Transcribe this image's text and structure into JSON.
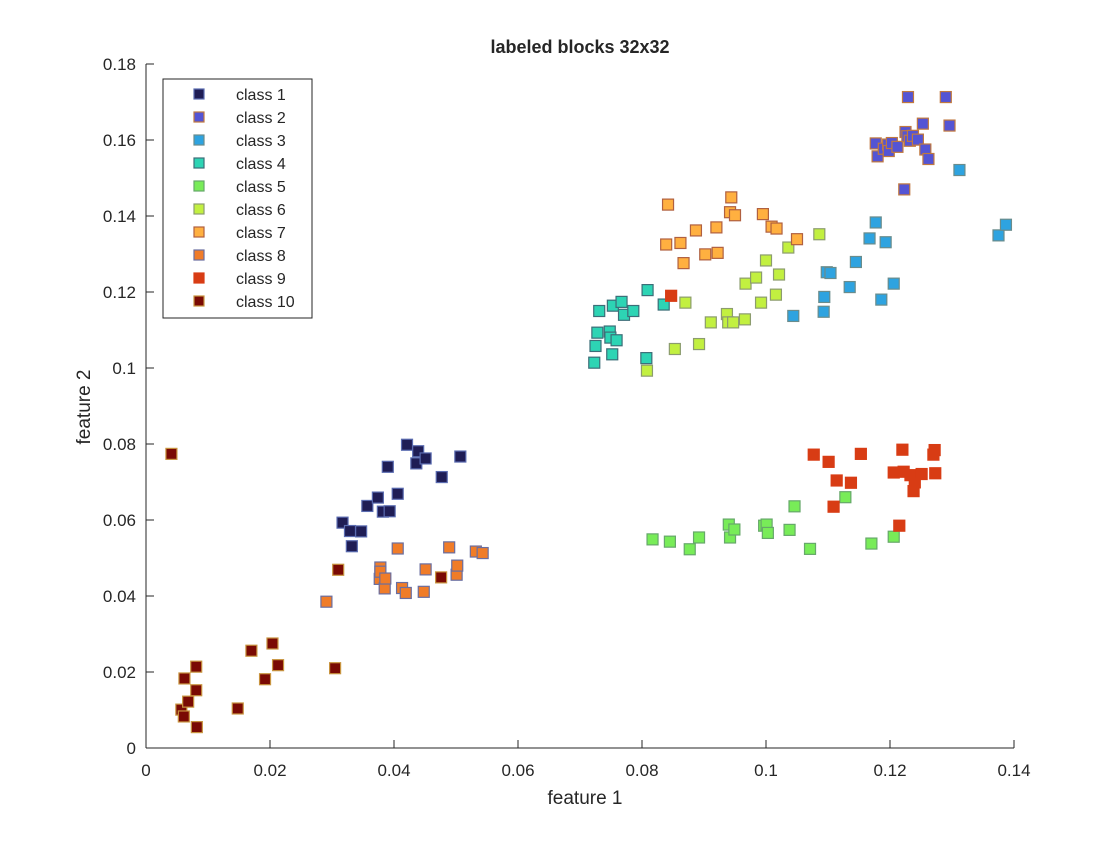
{
  "chart_data": {
    "type": "scatter",
    "title": "labeled blocks 32x32",
    "xlabel": "feature 1",
    "ylabel": "feature 2",
    "xlim": [
      0,
      0.14
    ],
    "ylim": [
      0,
      0.18
    ],
    "xticks": [
      "0",
      "0.02",
      "0.04",
      "0.06",
      "0.08",
      "0.1",
      "0.12",
      "0.14"
    ],
    "yticks": [
      "0",
      "0.02",
      "0.04",
      "0.06",
      "0.08",
      "0.1",
      "0.12",
      "0.14",
      "0.16",
      "0.18"
    ],
    "grid": false,
    "legend_position": "top-left",
    "series": [
      {
        "name": "class 1",
        "color": "#1f1d55",
        "edge": "#5a6bb0",
        "points": [
          [
            0.0317,
            0.0593
          ],
          [
            0.0329,
            0.0571
          ],
          [
            0.0332,
            0.0531
          ],
          [
            0.0347,
            0.057
          ],
          [
            0.0357,
            0.0637
          ],
          [
            0.0374,
            0.0659
          ],
          [
            0.0382,
            0.0622
          ],
          [
            0.039,
            0.074
          ],
          [
            0.0393,
            0.0623
          ],
          [
            0.0406,
            0.0669
          ],
          [
            0.0421,
            0.0798
          ],
          [
            0.0436,
            0.0749
          ],
          [
            0.0439,
            0.0781
          ],
          [
            0.0451,
            0.0762
          ],
          [
            0.0477,
            0.0713
          ],
          [
            0.0507,
            0.0767
          ]
        ]
      },
      {
        "name": "class 2",
        "color": "#5454d4",
        "edge": "#c07840",
        "points": [
          [
            0.1177,
            0.1591
          ],
          [
            0.118,
            0.1557
          ],
          [
            0.119,
            0.1577
          ],
          [
            0.1197,
            0.1588
          ],
          [
            0.1198,
            0.1571
          ],
          [
            0.1203,
            0.1592
          ],
          [
            0.1212,
            0.1582
          ],
          [
            0.1223,
            0.147
          ],
          [
            0.1225,
            0.1621
          ],
          [
            0.1228,
            0.161
          ],
          [
            0.1229,
            0.1713
          ],
          [
            0.1232,
            0.1598
          ],
          [
            0.1237,
            0.1611
          ],
          [
            0.1245,
            0.1601
          ],
          [
            0.1253,
            0.1643
          ],
          [
            0.1257,
            0.1575
          ],
          [
            0.1262,
            0.155
          ],
          [
            0.129,
            0.1713
          ],
          [
            0.1296,
            0.1638
          ]
        ]
      },
      {
        "name": "class 3",
        "color": "#2ea3e0",
        "edge": "#6a8c8c",
        "points": [
          [
            0.1044,
            0.1137
          ],
          [
            0.1093,
            0.1148
          ],
          [
            0.1094,
            0.1187
          ],
          [
            0.1098,
            0.1252
          ],
          [
            0.1104,
            0.125
          ],
          [
            0.1135,
            0.1213
          ],
          [
            0.1145,
            0.1279
          ],
          [
            0.1167,
            0.1341
          ],
          [
            0.1177,
            0.1383
          ],
          [
            0.1186,
            0.118
          ],
          [
            0.1193,
            0.1331
          ],
          [
            0.1206,
            0.1222
          ],
          [
            0.1312,
            0.1521
          ],
          [
            0.1375,
            0.1349
          ],
          [
            0.1387,
            0.1377
          ]
        ]
      },
      {
        "name": "class 4",
        "color": "#2dd4b4",
        "edge": "#3c6e78",
        "points": [
          [
            0.0723,
            0.1014
          ],
          [
            0.0725,
            0.1058
          ],
          [
            0.0728,
            0.1093
          ],
          [
            0.0731,
            0.115
          ],
          [
            0.0748,
            0.1096
          ],
          [
            0.0749,
            0.108
          ],
          [
            0.0752,
            0.1036
          ],
          [
            0.0753,
            0.1164
          ],
          [
            0.0759,
            0.1073
          ],
          [
            0.0767,
            0.1174
          ],
          [
            0.0771,
            0.114
          ],
          [
            0.0786,
            0.115
          ],
          [
            0.0807,
            0.1026
          ],
          [
            0.0809,
            0.1205
          ],
          [
            0.0835,
            0.1167
          ]
        ]
      },
      {
        "name": "class 5",
        "color": "#78ec58",
        "edge": "#66a86a",
        "points": [
          [
            0.0817,
            0.0549
          ],
          [
            0.0845,
            0.0543
          ],
          [
            0.0877,
            0.0523
          ],
          [
            0.0892,
            0.0554
          ],
          [
            0.094,
            0.0588
          ],
          [
            0.0942,
            0.0554
          ],
          [
            0.0949,
            0.0575
          ],
          [
            0.0997,
            0.0585
          ],
          [
            0.1001,
            0.0588
          ],
          [
            0.1003,
            0.0566
          ],
          [
            0.1038,
            0.0574
          ],
          [
            0.1046,
            0.0636
          ],
          [
            0.1071,
            0.0524
          ],
          [
            0.1128,
            0.066
          ],
          [
            0.117,
            0.0538
          ],
          [
            0.1206,
            0.0556
          ]
        ]
      },
      {
        "name": "class 6",
        "color": "#c2f040",
        "edge": "#8c9c6e",
        "points": [
          [
            0.0808,
            0.0993
          ],
          [
            0.0853,
            0.105
          ],
          [
            0.087,
            0.1172
          ],
          [
            0.0892,
            0.1063
          ],
          [
            0.0911,
            0.112
          ],
          [
            0.0937,
            0.1142
          ],
          [
            0.0939,
            0.112
          ],
          [
            0.0947,
            0.112
          ],
          [
            0.0966,
            0.1128
          ],
          [
            0.0967,
            0.1222
          ],
          [
            0.0984,
            0.1238
          ],
          [
            0.0992,
            0.1172
          ],
          [
            0.1,
            0.1283
          ],
          [
            0.1016,
            0.1193
          ],
          [
            0.1021,
            0.1246
          ],
          [
            0.1036,
            0.1317
          ],
          [
            0.1086,
            0.1352
          ]
        ]
      },
      {
        "name": "class 7",
        "color": "#ffb040",
        "edge": "#b06040",
        "points": [
          [
            0.0839,
            0.1325
          ],
          [
            0.0842,
            0.143
          ],
          [
            0.0862,
            0.1329
          ],
          [
            0.0867,
            0.1276
          ],
          [
            0.0887,
            0.1362
          ],
          [
            0.0902,
            0.1299
          ],
          [
            0.092,
            0.137
          ],
          [
            0.0922,
            0.1303
          ],
          [
            0.0942,
            0.141
          ],
          [
            0.0944,
            0.1449
          ],
          [
            0.095,
            0.1402
          ],
          [
            0.0995,
            0.1405
          ],
          [
            0.1009,
            0.1372
          ],
          [
            0.1017,
            0.1367
          ],
          [
            0.105,
            0.1339
          ]
        ]
      },
      {
        "name": "class 8",
        "color": "#f07c28",
        "edge": "#6a6ea0",
        "points": [
          [
            0.0291,
            0.0385
          ],
          [
            0.0377,
            0.0445
          ],
          [
            0.0378,
            0.0475
          ],
          [
            0.0378,
            0.0464
          ],
          [
            0.0385,
            0.042
          ],
          [
            0.0386,
            0.0446
          ],
          [
            0.0406,
            0.0525
          ],
          [
            0.0413,
            0.0421
          ],
          [
            0.0419,
            0.0408
          ],
          [
            0.0448,
            0.0411
          ],
          [
            0.0451,
            0.047
          ],
          [
            0.0489,
            0.0528
          ],
          [
            0.0501,
            0.0456
          ],
          [
            0.0502,
            0.048
          ],
          [
            0.0532,
            0.0517
          ],
          [
            0.0543,
            0.0513
          ]
        ]
      },
      {
        "name": "class 9",
        "color": "#d83c14",
        "edge": "#d83c14",
        "points": [
          [
            0.0847,
            0.119
          ],
          [
            0.1077,
            0.0772
          ],
          [
            0.1101,
            0.0753
          ],
          [
            0.1109,
            0.0635
          ],
          [
            0.1114,
            0.0704
          ],
          [
            0.1137,
            0.0698
          ],
          [
            0.1153,
            0.0774
          ],
          [
            0.1206,
            0.0725
          ],
          [
            0.1215,
            0.0585
          ],
          [
            0.122,
            0.0785
          ],
          [
            0.1222,
            0.0727
          ],
          [
            0.1233,
            0.0718
          ],
          [
            0.1238,
            0.0676
          ],
          [
            0.124,
            0.0699
          ],
          [
            0.1251,
            0.0721
          ],
          [
            0.127,
            0.0772
          ],
          [
            0.1272,
            0.0784
          ],
          [
            0.1273,
            0.0723
          ]
        ]
      },
      {
        "name": "class 10",
        "color": "#7a0a04",
        "edge": "#c89440",
        "points": [
          [
            0.0041,
            0.0774
          ],
          [
            0.0057,
            0.0101
          ],
          [
            0.0061,
            0.0083
          ],
          [
            0.0062,
            0.0183
          ],
          [
            0.0068,
            0.0122
          ],
          [
            0.0081,
            0.0214
          ],
          [
            0.0081,
            0.0152
          ],
          [
            0.0082,
            0.0055
          ],
          [
            0.0148,
            0.0104
          ],
          [
            0.017,
            0.0256
          ],
          [
            0.0192,
            0.0181
          ],
          [
            0.0204,
            0.0275
          ],
          [
            0.0213,
            0.0218
          ],
          [
            0.0305,
            0.021
          ],
          [
            0.031,
            0.0469
          ],
          [
            0.0476,
            0.0449
          ]
        ]
      }
    ]
  }
}
